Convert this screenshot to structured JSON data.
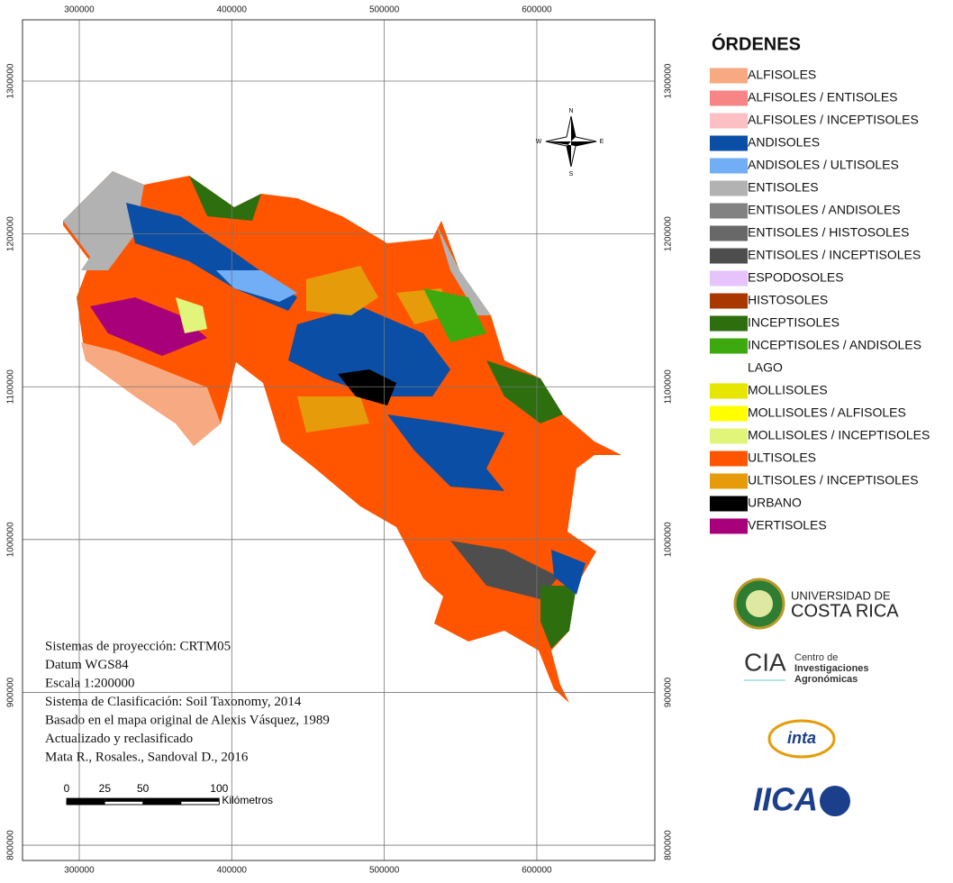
{
  "map": {
    "xlim": [
      262800,
      677400
    ],
    "ylim": [
      790000,
      1340100
    ],
    "xticks": [
      300000,
      400000,
      500000,
      600000
    ],
    "yticks": [
      800000,
      900000,
      1000000,
      1100000,
      1200000,
      1300000
    ],
    "compass": {
      "n": "N",
      "s": "S",
      "e": "E",
      "w": "W"
    },
    "info": [
      "Sistemas de proyección: CRTM05",
      "Datum WGS84",
      "Escala 1:200000",
      "Sistema de Clasificación: Soil Taxonomy, 2014",
      "Basado en el mapa original de Alexis Vásquez, 1989",
      "Actualizado y reclasificado",
      "Mata R., Rosales., Sandoval D., 2016"
    ],
    "scale_bar": {
      "ticks": [
        0,
        25,
        50,
        100
      ],
      "unit": "Kilómetros"
    }
  },
  "legend": {
    "title": "ÓRDENES",
    "items": [
      {
        "name": "ALFISOLES",
        "color": "#f7a982"
      },
      {
        "name": "ALFISOLES / ENTISOLES",
        "color": "#f78585"
      },
      {
        "name": "ALFISOLES / INCEPTISOLES",
        "color": "#fbbfc4"
      },
      {
        "name": "ANDISOLES",
        "color": "#0b4ea6"
      },
      {
        "name": "ANDISOLES / ULTISOLES",
        "color": "#72aef5"
      },
      {
        "name": "ENTISOLES",
        "color": "#b2b2b2"
      },
      {
        "name": "ENTISOLES / ANDISOLES",
        "color": "#828282"
      },
      {
        "name": "ENTISOLES / HISTOSOLES",
        "color": "#686868"
      },
      {
        "name": "ENTISOLES / INCEPTISOLES",
        "color": "#4e4e4e"
      },
      {
        "name": "ESPODOSOLES",
        "color": "#e6c3fa"
      },
      {
        "name": "HISTOSOLES",
        "color": "#a83800"
      },
      {
        "name": "INCEPTISOLES",
        "color": "#2d6e0f"
      },
      {
        "name": "INCEPTISOLES / ANDISOLES",
        "color": "#3ea80f"
      },
      {
        "name": "LAGO",
        "color": "#ffffff"
      },
      {
        "name": "MOLLISOLES",
        "color": "#e6e600"
      },
      {
        "name": "MOLLISOLES / ALFISOLES",
        "color": "#ffff00"
      },
      {
        "name": "MOLLISOLES / INCEPTISOLES",
        "color": "#e1f57a"
      },
      {
        "name": "ULTISOLES",
        "color": "#ff5500"
      },
      {
        "name": "ULTISOLES / INCEPTISOLES",
        "color": "#e69c0a"
      },
      {
        "name": "URBANO",
        "color": "#000000"
      },
      {
        "name": "VERTISOLES",
        "color": "#a8007a"
      }
    ]
  },
  "logos": {
    "ucr": [
      "UNIVERSIDAD DE",
      "COSTA RICA"
    ],
    "cia": {
      "short": "CIA",
      "lines": [
        "Centro de",
        "Investigaciones",
        "Agronómicas"
      ]
    },
    "inta": "inta",
    "iica": "IICA"
  }
}
